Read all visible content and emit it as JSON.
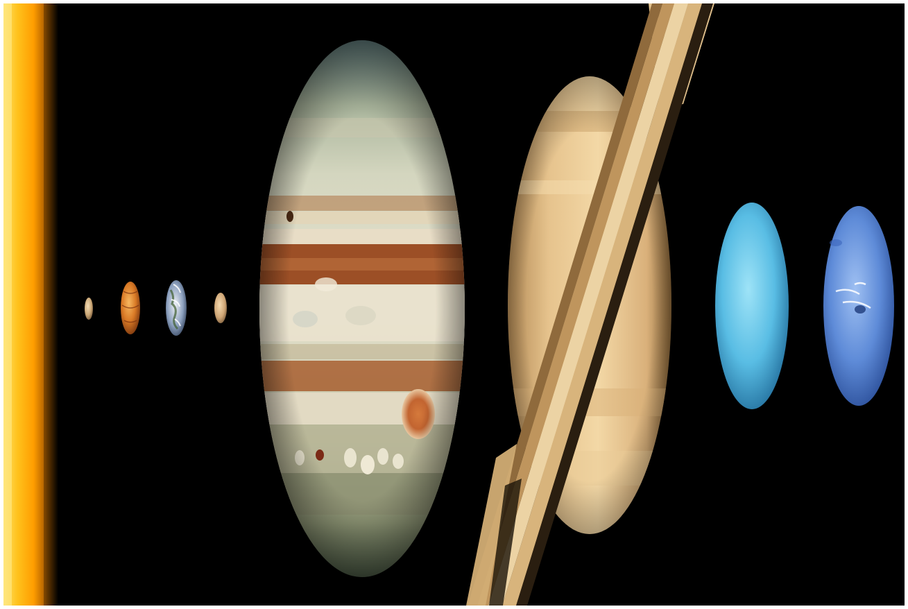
{
  "image": {
    "kind": "solar-system-composite",
    "background_color": "#000000",
    "border_color": "#ffffff",
    "bodies": [
      {
        "name": "sun",
        "colors": [
          "#ffd23a",
          "#ff9d00",
          "#ffdf5a"
        ]
      },
      {
        "name": "mercury",
        "colors": [
          "#e4c398",
          "#9a7550"
        ]
      },
      {
        "name": "venus",
        "colors": [
          "#f2a446",
          "#b8561a",
          "#6c2c0a"
        ]
      },
      {
        "name": "earth",
        "colors": [
          "#f4f6fa",
          "#4f6e9a",
          "#1a2840"
        ]
      },
      {
        "name": "mars",
        "colors": [
          "#e8c89a",
          "#a9825a"
        ]
      },
      {
        "name": "jupiter",
        "colors": [
          "#d9d9c4",
          "#a3562a",
          "#5c6b4e",
          "#c7874e"
        ]
      },
      {
        "name": "saturn",
        "colors": [
          "#f2d7a5",
          "#d6a867",
          "#8c6a3f",
          "#3a2c1a"
        ]
      },
      {
        "name": "uranus",
        "colors": [
          "#7ed3f0",
          "#3ba3d4",
          "#1f6a98"
        ]
      },
      {
        "name": "neptune",
        "colors": [
          "#7fa9ea",
          "#4a78cc",
          "#274a94"
        ]
      }
    ]
  }
}
